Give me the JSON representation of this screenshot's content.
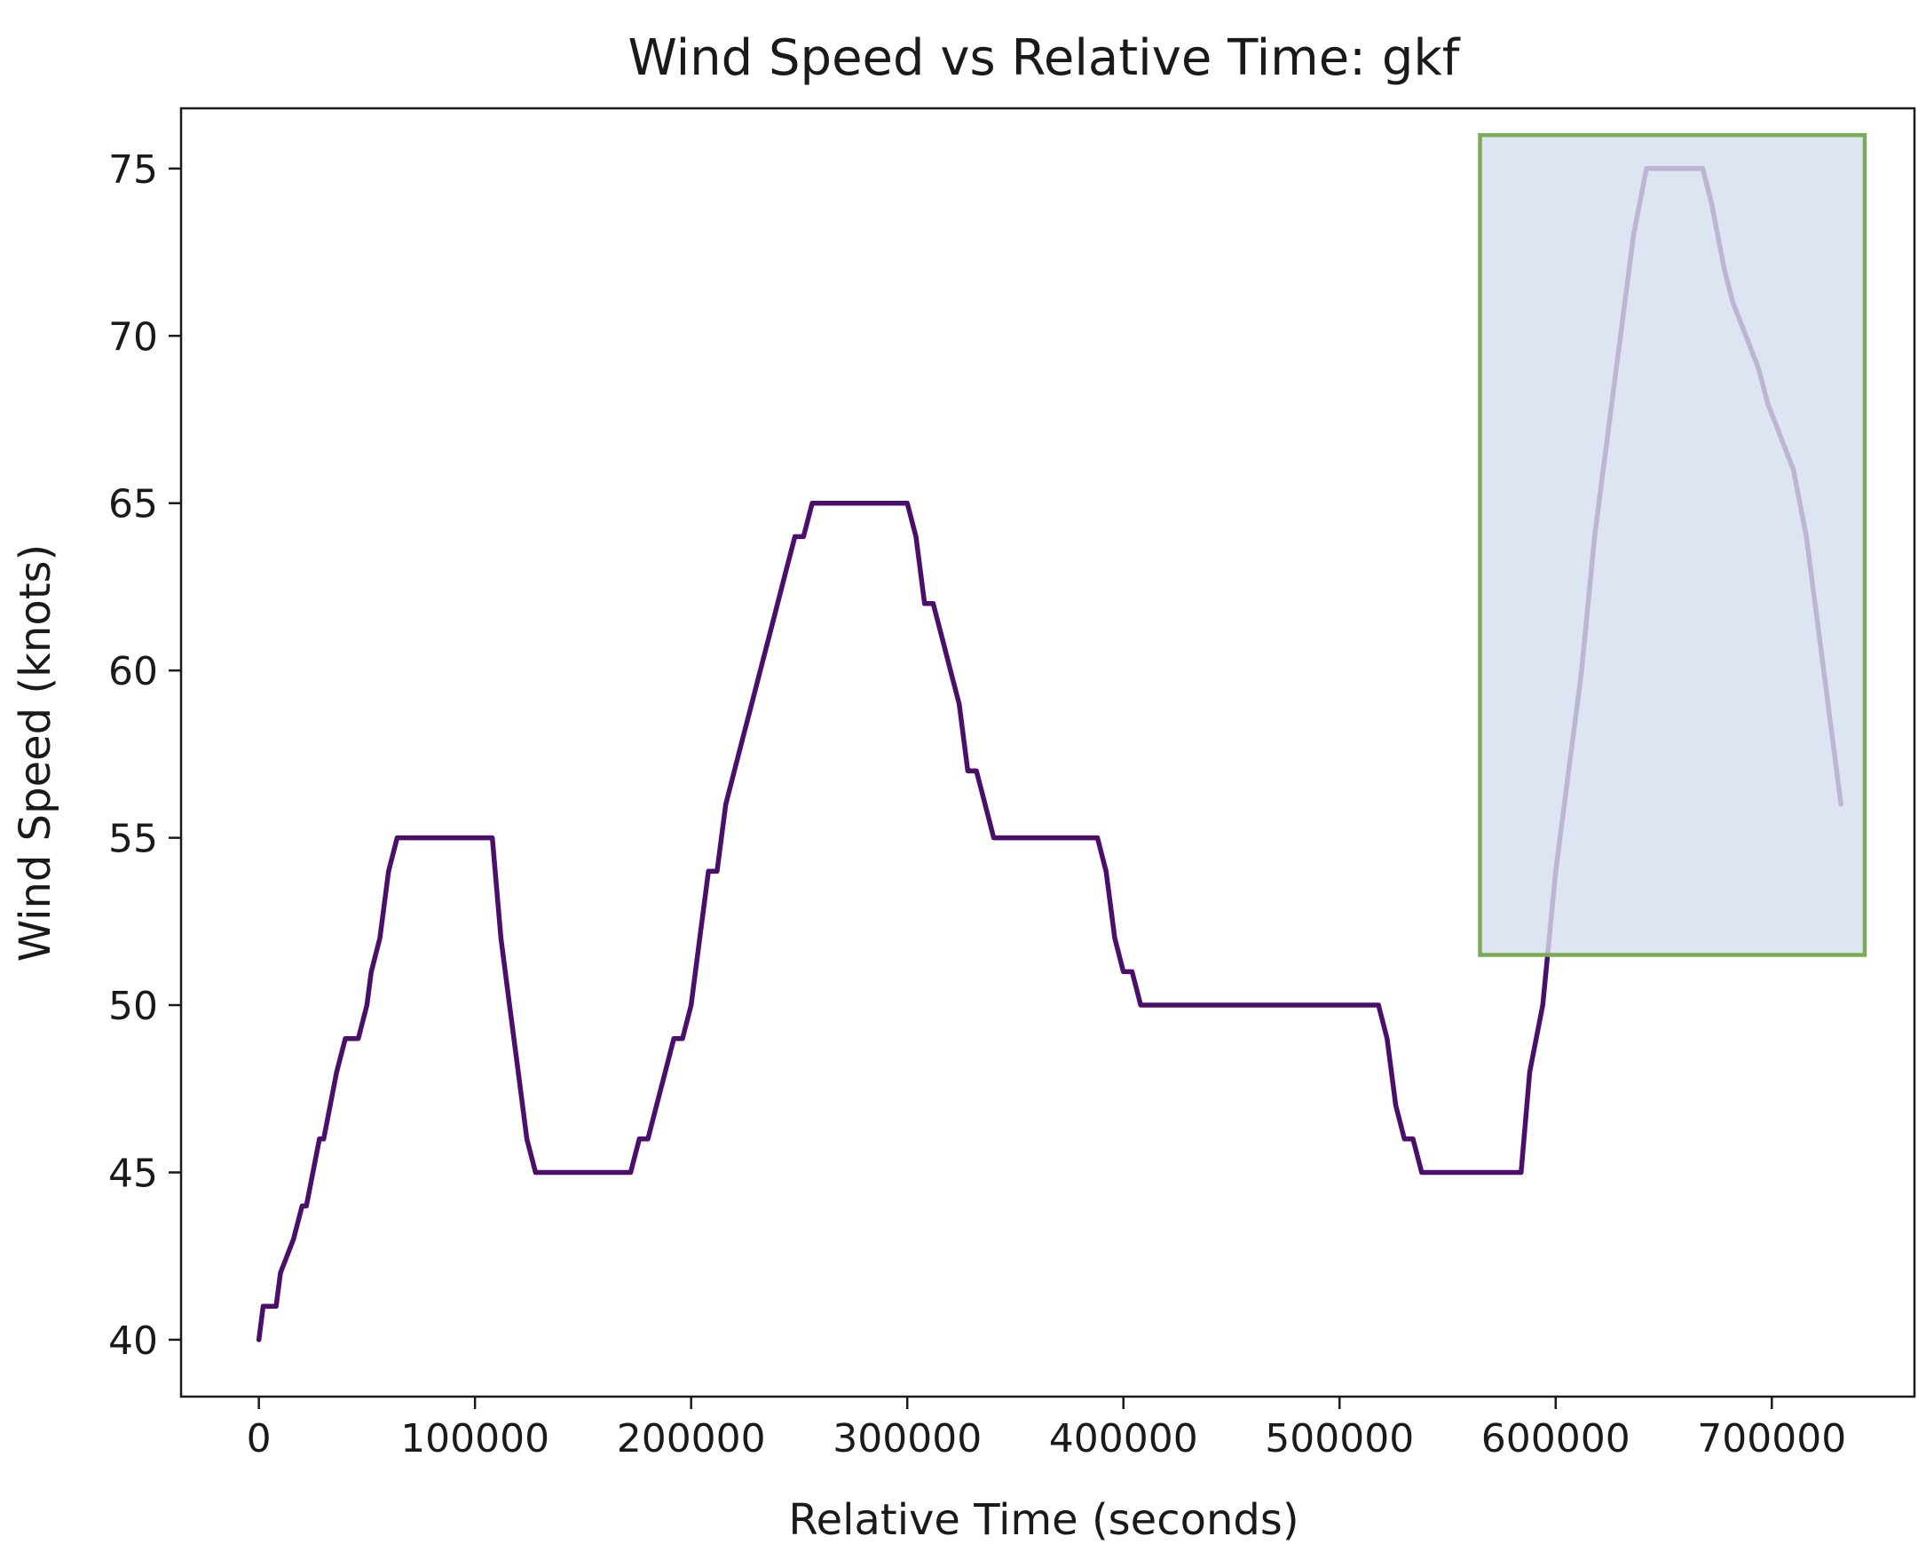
{
  "chart_data": {
    "type": "line",
    "title": "Wind Speed vs Relative Time: gkf",
    "xlabel": "Relative Time (seconds)",
    "ylabel": "Wind Speed (knots)",
    "xlim": [
      -36000,
      766000
    ],
    "ylim": [
      38.3,
      76.8
    ],
    "x_ticks": [
      0,
      100000,
      200000,
      300000,
      400000,
      500000,
      600000,
      700000
    ],
    "x_tick_labels": [
      "0",
      "100000",
      "200000",
      "300000",
      "400000",
      "500000",
      "600000",
      "700000"
    ],
    "y_ticks": [
      40,
      45,
      50,
      55,
      60,
      65,
      70,
      75
    ],
    "y_tick_labels": [
      "40",
      "45",
      "50",
      "55",
      "60",
      "65",
      "70",
      "75"
    ],
    "grid": false,
    "line_color": "#4b0f6b",
    "highlight": {
      "x_range": [
        565000,
        743000
      ],
      "y_range": [
        51.5,
        76.0
      ],
      "fill_color": "#dde4f2",
      "border_color": "#7aab55"
    },
    "series": [
      {
        "x": [
          0,
          2000,
          8000,
          10000,
          16000,
          20000,
          22000,
          28000,
          30000,
          36000,
          40000,
          46000,
          50000,
          52000,
          56000,
          60000,
          64000,
          108000,
          112000,
          116000,
          120000,
          124000,
          128000,
          172000,
          176000,
          180000,
          184000,
          188000,
          192000,
          196000,
          200000,
          204000,
          208000,
          212000,
          216000,
          220000,
          224000,
          228000,
          232000,
          236000,
          240000,
          244000,
          248000,
          252000,
          256000,
          260000,
          300000,
          304000,
          308000,
          312000,
          316000,
          320000,
          324000,
          328000,
          332000,
          336000,
          340000,
          344000,
          348000,
          388000,
          392000,
          396000,
          400000,
          404000,
          408000,
          412000,
          518000,
          522000,
          526000,
          530000,
          534000,
          538000,
          542000,
          584000,
          588000,
          594000,
          600000,
          606000,
          612000,
          618000,
          624000,
          630000,
          636000,
          642000,
          648000,
          654000,
          668000,
          672000,
          678000,
          682000,
          688000,
          694000,
          698000,
          704000,
          710000,
          716000,
          722000,
          726000,
          732000
        ],
        "y": [
          40,
          41,
          41,
          42,
          43,
          44,
          44,
          46,
          46,
          48,
          49,
          49,
          50,
          51,
          52,
          54,
          55,
          55,
          52,
          50,
          48,
          46,
          45,
          45,
          46,
          46,
          47,
          48,
          49,
          49,
          50,
          52,
          54,
          54,
          56,
          57,
          58,
          59,
          60,
          61,
          62,
          63,
          64,
          64,
          65,
          65,
          65,
          64,
          62,
          62,
          61,
          60,
          59,
          57,
          57,
          56,
          55,
          55,
          55,
          55,
          54,
          52,
          51,
          51,
          50,
          50,
          50,
          49,
          47,
          46,
          46,
          45,
          45,
          45,
          48,
          50,
          54,
          57,
          60,
          64,
          67,
          70,
          73,
          75,
          75,
          75,
          75,
          74,
          72,
          71,
          70,
          69,
          68,
          67,
          66,
          64,
          61,
          59,
          56
        ]
      }
    ]
  }
}
